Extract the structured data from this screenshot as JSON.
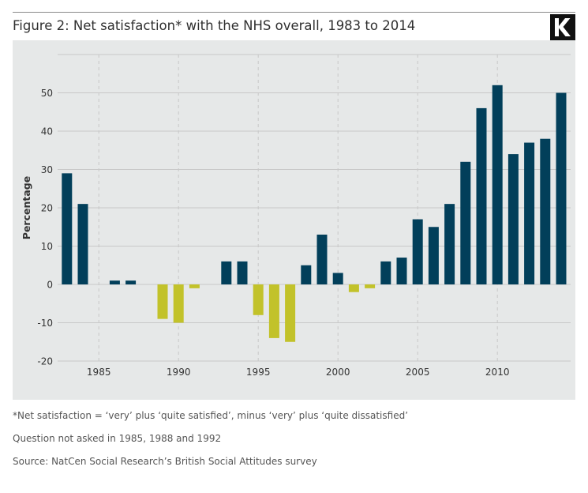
{
  "title": "Figure 2: Net satisfaction* with the NHS overall, 1983 to 2014",
  "logo": {
    "letter": "K",
    "icon": "k-logo-icon"
  },
  "notes": {
    "definition": "*Net satisfaction = ‘very’ plus ‘quite satisfied’, minus ‘very’ plus ‘quite dissatisfied’",
    "missing": "Question not asked in 1985, 1988 and 1992",
    "source": "Source: NatCen Social Research’s British Social Attitudes survey"
  },
  "chart_data": {
    "type": "bar",
    "title": "Figure 2: Net satisfaction* with the NHS overall, 1983 to 2014",
    "xlabel": "",
    "ylabel": "Percentage",
    "ylim": [
      -20,
      60
    ],
    "yticks": [
      -20,
      -10,
      0,
      10,
      20,
      30,
      40,
      50
    ],
    "xticks": [
      1985,
      1990,
      1995,
      2000,
      2005,
      2010
    ],
    "xlim": [
      1983,
      2014
    ],
    "grid": true,
    "colors": {
      "positive": "#023f5a",
      "negative": "#c2c22a",
      "grid": "#c8c8c8",
      "background": "#e6e8e8"
    },
    "categories": [
      1983,
      1984,
      1986,
      1987,
      1989,
      1990,
      1991,
      1993,
      1994,
      1995,
      1996,
      1997,
      1998,
      1999,
      2000,
      2001,
      2002,
      2003,
      2004,
      2005,
      2006,
      2007,
      2008,
      2009,
      2010,
      2011,
      2012,
      2013,
      2014
    ],
    "values": [
      29,
      21,
      1,
      1,
      -9,
      -10,
      -1,
      6,
      6,
      -8,
      -14,
      -15,
      5,
      13,
      3,
      -2,
      -1,
      6,
      7,
      17,
      15,
      21,
      32,
      46,
      52,
      34,
      37,
      38,
      50
    ]
  }
}
